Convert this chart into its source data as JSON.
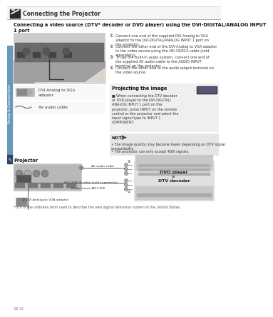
{
  "bg_color": "#ffffff",
  "header_title": "Connecting the Projector",
  "section_title_line1": "Connecting a video source (DTV* decoder or DVD player) using the DVI-DIGITAL/ANALOG INPUT",
  "section_title_line2": "1 port",
  "step1": "Connect one end of the supplied DVI-Analog to VGA\nadaptor to the DVI-DIGITAL/ANALOG INPUT 1 port on\nthe projector.",
  "step2": "Connect the other end of the DVI-Analog to VGA adaptor\nto the video source using the HD-15/RCA cable (sold\nseparately).",
  "step3": "To use the built-in audio system, connect one end of\nthe supplied AV audio cable to the AUDIO INPUT\nterminal on the projector.",
  "step4": "Connect the other end to the audio output terminal on\nthe video source.",
  "proj_title": "Projecting the image",
  "proj_text": "When connecting the DTV decoder\nor DVD player to the DVI-DIGITAL/\nANALOG INPUT 1 port on the\nprojector, press INPUT on the remote\ncontrol or the projector and select the\ninput signal type to INPUT 1\nCOMPONENT.",
  "proj_text_bold": "INPUT",
  "note_title": "NOTE",
  "note1": "The image quality may become lower depending on DTV signal\ncompatibility.",
  "note2": "The projector can only accept 480i signals.",
  "proj_label": "Projector",
  "dvi_label": "DVI-Analog to VGA\nadaptor",
  "av_label": "AV audio cable",
  "hd15_label": "HD-15/RCA cable (sold separately)",
  "model_label": "Model name AN-C3CP",
  "dtv_label_line1": "DTV decoder",
  "dtv_label_line2": "or",
  "dtv_label_line3": "DVD player",
  "footnote": "*DTV is the umbrella term used to describe the new digital television system in the United States.",
  "page_num": "GB-16",
  "sidebar_color": "#6699bb",
  "sidebar_text": "Setup & Connections",
  "header_icon_color": "#2a2a2a",
  "note_bg": "#e5e5e5",
  "proj_box_bg": "#efefef",
  "connector_color": "#aaaaaa",
  "line_color": "#555555",
  "device_color": "#cccccc",
  "device_dark": "#999999"
}
